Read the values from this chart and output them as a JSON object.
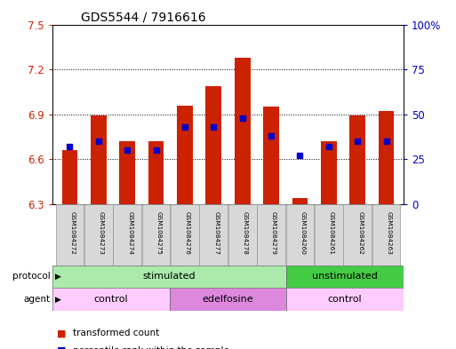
{
  "title": "GDS5544 / 7916616",
  "samples": [
    "GSM1084272",
    "GSM1084273",
    "GSM1084274",
    "GSM1084275",
    "GSM1084276",
    "GSM1084277",
    "GSM1084278",
    "GSM1084279",
    "GSM1084260",
    "GSM1084261",
    "GSM1084262",
    "GSM1084263"
  ],
  "red_values": [
    6.66,
    6.89,
    6.72,
    6.72,
    6.96,
    7.09,
    7.28,
    6.95,
    6.34,
    6.72,
    6.89,
    6.92
  ],
  "blue_percentiles": [
    32,
    35,
    30,
    30,
    43,
    43,
    48,
    38,
    27,
    32,
    35,
    35
  ],
  "ylim_left": [
    6.3,
    7.5
  ],
  "ylim_right": [
    0,
    100
  ],
  "yticks_left": [
    6.3,
    6.6,
    6.9,
    7.2,
    7.5
  ],
  "yticks_right": [
    0,
    25,
    50,
    75,
    100
  ],
  "ytick_labels_left": [
    "6.3",
    "6.6",
    "6.9",
    "7.2",
    "7.5"
  ],
  "ytick_labels_right": [
    "0",
    "25",
    "50",
    "75",
    "100%"
  ],
  "protocol_groups": [
    {
      "label": "stimulated",
      "start": 0,
      "end": 8,
      "color": "#aaeaaa"
    },
    {
      "label": "unstimulated",
      "start": 8,
      "end": 12,
      "color": "#44cc44"
    }
  ],
  "agent_groups": [
    {
      "label": "control",
      "start": 0,
      "end": 4,
      "color": "#ffccff"
    },
    {
      "label": "edelfosine",
      "start": 4,
      "end": 8,
      "color": "#dd88dd"
    },
    {
      "label": "control",
      "start": 8,
      "end": 12,
      "color": "#ffccff"
    }
  ],
  "bar_color": "#cc2200",
  "blue_color": "#0000cc",
  "bar_width": 0.55,
  "background_color": "#ffffff",
  "plot_bg_color": "#ffffff",
  "title_fontsize": 10,
  "axis_label_color_left": "#cc2200",
  "axis_label_color_right": "#0000cc",
  "grid_color": "#000000",
  "base_value": 6.3
}
